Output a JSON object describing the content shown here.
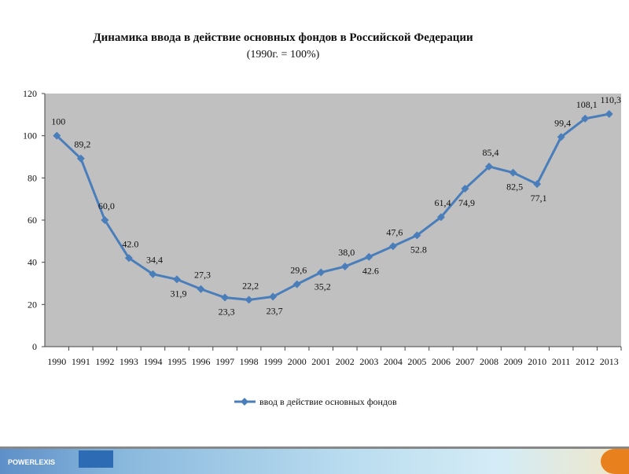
{
  "chart_data": {
    "type": "line",
    "title": "Динамика ввода в действие основных фондов в Российской Федерации",
    "subtitle": "(1990г. = 100%)",
    "categories": [
      "1990",
      "1991",
      "1992",
      "1993",
      "1994",
      "1995",
      "1996",
      "1997",
      "1998",
      "1999",
      "2000",
      "2001",
      "2002",
      "2003",
      "2004",
      "2005",
      "2006",
      "2007",
      "2008",
      "2009",
      "2010",
      "2011",
      "2012",
      "2013"
    ],
    "series": [
      {
        "name": "ввод в действие основных фондов",
        "values": [
          100,
          89.2,
          60.0,
          42.0,
          34.4,
          31.9,
          27.3,
          23.3,
          22.2,
          23.7,
          29.6,
          35.2,
          38.0,
          42.6,
          47.6,
          52.8,
          61.4,
          74.9,
          85.4,
          82.5,
          77.1,
          99.4,
          108.1,
          110.3
        ],
        "labels": [
          "100",
          "89,2",
          "60,0",
          "42.0",
          "34,4",
          "31,9",
          "27,3",
          "23,3",
          "22,2",
          "23,7",
          "29,6",
          "35,2",
          "38,0",
          "42.6",
          "47,6",
          "52.8",
          "61,4",
          "74,9",
          "85,4",
          "82,5",
          "77,1",
          "99,4",
          "108,1",
          "110,3"
        ],
        "label_pos": [
          "above",
          "above",
          "above",
          "above",
          "above",
          "below",
          "above",
          "below",
          "above",
          "below",
          "above",
          "below",
          "above",
          "below",
          "above",
          "below",
          "above",
          "below",
          "above",
          "below",
          "below",
          "above",
          "above",
          "above"
        ],
        "color": "#4a7ebb"
      }
    ],
    "ylim": [
      0,
      120
    ],
    "yticks": [
      "0",
      "20",
      "40",
      "60",
      "80",
      "100",
      "120"
    ],
    "xlabel": "",
    "ylabel": "",
    "legend": "bottom",
    "plot_background": "#c0c0c0"
  },
  "footer": {
    "logo": "POWERLEXIS"
  }
}
